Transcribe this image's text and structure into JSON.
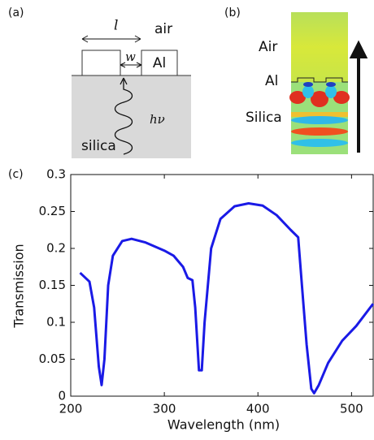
{
  "panel_a": {
    "label": "(a)",
    "length": "l",
    "air": "air",
    "gap": "w",
    "metal": "Al",
    "photon": "hν",
    "substrate": "silica"
  },
  "panel_b": {
    "label": "(b)",
    "air": "Air",
    "metal": "Al",
    "substrate": "Silica"
  },
  "panel_c": {
    "label": "(c)"
  },
  "chart_data": {
    "type": "line",
    "xlabel": "Wavelength (nm)",
    "ylabel": "Transmission",
    "color": "#1a1ae6",
    "x": [
      210,
      220,
      225,
      230,
      233,
      236,
      240,
      245,
      255,
      265,
      280,
      300,
      310,
      320,
      325,
      330,
      333,
      337,
      340,
      343,
      350,
      360,
      375,
      390,
      405,
      420,
      435,
      443,
      447,
      452,
      457,
      460,
      465,
      475,
      490,
      505,
      523
    ],
    "values": [
      0.167,
      0.155,
      0.12,
      0.04,
      0.015,
      0.05,
      0.15,
      0.19,
      0.21,
      0.213,
      0.208,
      0.197,
      0.19,
      0.175,
      0.16,
      0.157,
      0.12,
      0.035,
      0.035,
      0.1,
      0.2,
      0.24,
      0.257,
      0.261,
      0.258,
      0.245,
      0.225,
      0.215,
      0.15,
      0.07,
      0.01,
      0.004,
      0.015,
      0.045,
      0.075,
      0.095,
      0.125
    ],
    "xlim": [
      200,
      524
    ],
    "ylim": [
      0,
      0.3
    ],
    "xticks": [
      200,
      300,
      400,
      500
    ],
    "yticks": [
      0,
      0.05,
      0.1,
      0.15,
      0.2,
      0.25,
      0.3
    ]
  }
}
